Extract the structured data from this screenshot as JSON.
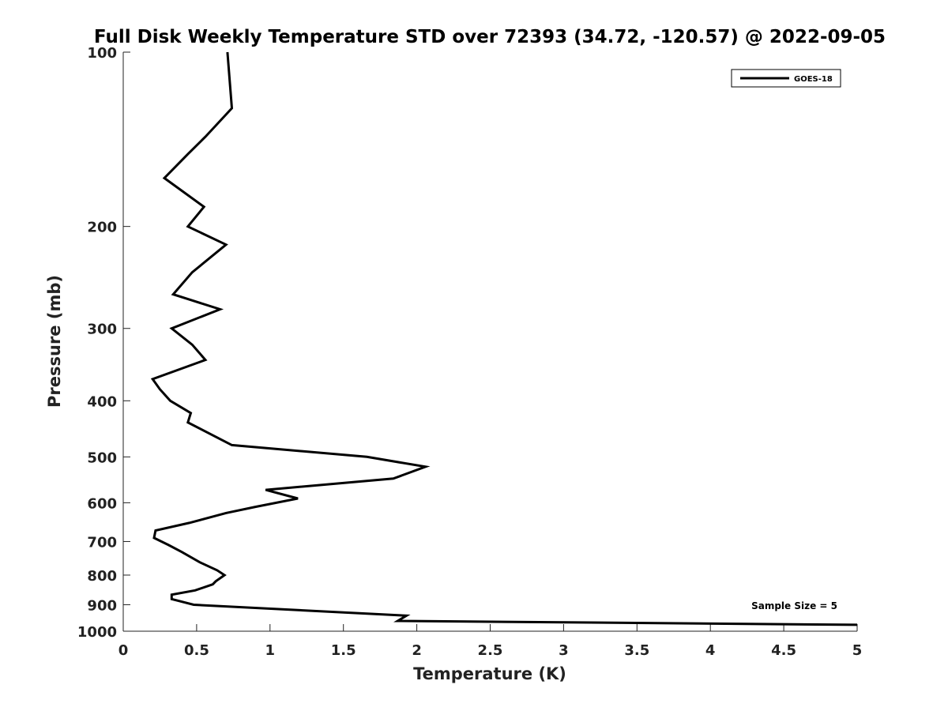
{
  "chart_data": {
    "type": "line",
    "title": "Full Disk Weekly Temperature STD over 72393 (34.72, -120.57) @ 2022-09-05",
    "xlabel": "Temperature (K)",
    "ylabel": "Pressure (mb)",
    "xlim": [
      0,
      5
    ],
    "ylim": [
      100,
      1000
    ],
    "y_scale": "log",
    "y_reversed": true,
    "x_ticks": [
      "0",
      "0.5",
      "1",
      "1.5",
      "2",
      "2.5",
      "3",
      "3.5",
      "4",
      "4.5",
      "5"
    ],
    "x_tick_values": [
      0,
      0.5,
      1,
      1.5,
      2,
      2.5,
      3,
      3.5,
      4,
      4.5,
      5
    ],
    "y_ticks": [
      "100",
      "200",
      "300",
      "400",
      "500",
      "600",
      "700",
      "800",
      "900",
      "1000"
    ],
    "y_tick_values": [
      100,
      200,
      300,
      400,
      500,
      600,
      700,
      800,
      900,
      1000
    ],
    "grid": false,
    "legend_position": "top-right",
    "annotation": "Sample Size = 5",
    "series": [
      {
        "name": "GOES-18",
        "color": "#000000",
        "points": [
          [
            0.71,
            100
          ],
          [
            0.74,
            125
          ],
          [
            0.56,
            140
          ],
          [
            0.44,
            150
          ],
          [
            0.28,
            165
          ],
          [
            0.55,
            185
          ],
          [
            0.44,
            200
          ],
          [
            0.7,
            215
          ],
          [
            0.47,
            240
          ],
          [
            0.34,
            262
          ],
          [
            0.66,
            278
          ],
          [
            0.33,
            300
          ],
          [
            0.47,
            320
          ],
          [
            0.56,
            340
          ],
          [
            0.2,
            367
          ],
          [
            0.25,
            382
          ],
          [
            0.32,
            400
          ],
          [
            0.46,
            420
          ],
          [
            0.44,
            436
          ],
          [
            0.74,
            477
          ],
          [
            1.66,
            500
          ],
          [
            2.06,
            520
          ],
          [
            1.84,
            545
          ],
          [
            0.97,
            570
          ],
          [
            1.19,
            590
          ],
          [
            0.9,
            610
          ],
          [
            0.7,
            625
          ],
          [
            0.45,
            650
          ],
          [
            0.22,
            670
          ],
          [
            0.21,
            690
          ],
          [
            0.31,
            710
          ],
          [
            0.4,
            730
          ],
          [
            0.52,
            760
          ],
          [
            0.64,
            785
          ],
          [
            0.69,
            800
          ],
          [
            0.63,
            820
          ],
          [
            0.61,
            830
          ],
          [
            0.49,
            850
          ],
          [
            0.33,
            865
          ],
          [
            0.33,
            880
          ],
          [
            0.48,
            900
          ],
          [
            1.93,
            940
          ],
          [
            1.87,
            960
          ],
          [
            5.0,
            975
          ]
        ]
      }
    ]
  }
}
